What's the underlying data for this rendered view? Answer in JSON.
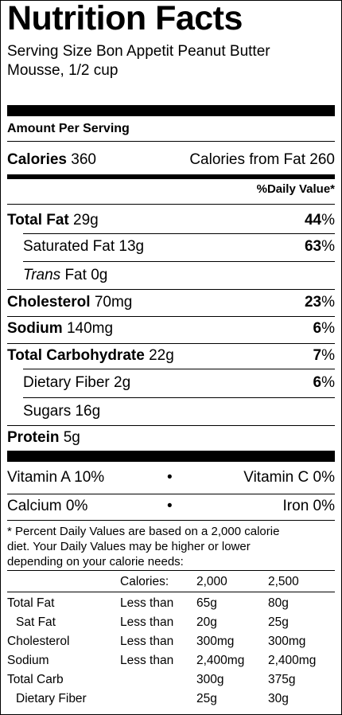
{
  "title": "Nutrition Facts",
  "serving_line1": "Serving Size Bon Appetit Peanut Butter",
  "serving_line2": "Mousse, 1/2 cup",
  "amount_per_serving": "Amount Per Serving",
  "calories": {
    "label": "Calories",
    "value": "360",
    "from_fat_label": "Calories from Fat",
    "from_fat_value": "260"
  },
  "daily_value_header": "%Daily Value*",
  "nutrients": {
    "total_fat": {
      "label": "Total Fat",
      "amount": "29g",
      "dv": "44",
      "pct": "%"
    },
    "saturated_fat": {
      "label": "Saturated Fat",
      "amount": "13g",
      "dv": "63",
      "pct": "%"
    },
    "trans_fat": {
      "label": "Trans",
      "label2": "Fat",
      "amount": "0g"
    },
    "cholesterol": {
      "label": "Cholesterol",
      "amount": "70mg",
      "dv": "23",
      "pct": "%"
    },
    "sodium": {
      "label": "Sodium",
      "amount": "140mg",
      "dv": "6",
      "pct": "%"
    },
    "total_carb": {
      "label": "Total Carbohydrate",
      "amount": "22g",
      "dv": "7",
      "pct": "%"
    },
    "dietary_fiber": {
      "label": "Dietary Fiber",
      "amount": "2g",
      "dv": "6",
      "pct": "%"
    },
    "sugars": {
      "label": "Sugars",
      "amount": "16g"
    },
    "protein": {
      "label": "Protein",
      "amount": "5g"
    }
  },
  "vitamins": {
    "vitamin_a": "Vitamin A 10%",
    "vitamin_c": "Vitamin C 0%",
    "calcium": "Calcium 0%",
    "iron": "Iron 0%",
    "bullet": "•"
  },
  "footnote": [
    "* Percent Daily Values are based on a 2,000 calorie",
    "diet. Your Daily Values may be higher or lower",
    "depending on your calorie needs:"
  ],
  "dv_table": {
    "header": [
      "",
      "Calories:",
      "2,000",
      "2,500"
    ],
    "rows": [
      [
        "Total Fat",
        "Less than",
        "65g",
        "80g"
      ],
      [
        "Sat Fat",
        "Less than",
        "20g",
        "25g"
      ],
      [
        "Cholesterol",
        "Less than",
        "300mg",
        "300mg"
      ],
      [
        "Sodium",
        "Less than",
        "2,400mg",
        "2,400mg"
      ],
      [
        "Total Carb",
        "",
        "300g",
        "375g"
      ],
      [
        "Dietary Fiber",
        "",
        "25g",
        "30g"
      ]
    ]
  }
}
